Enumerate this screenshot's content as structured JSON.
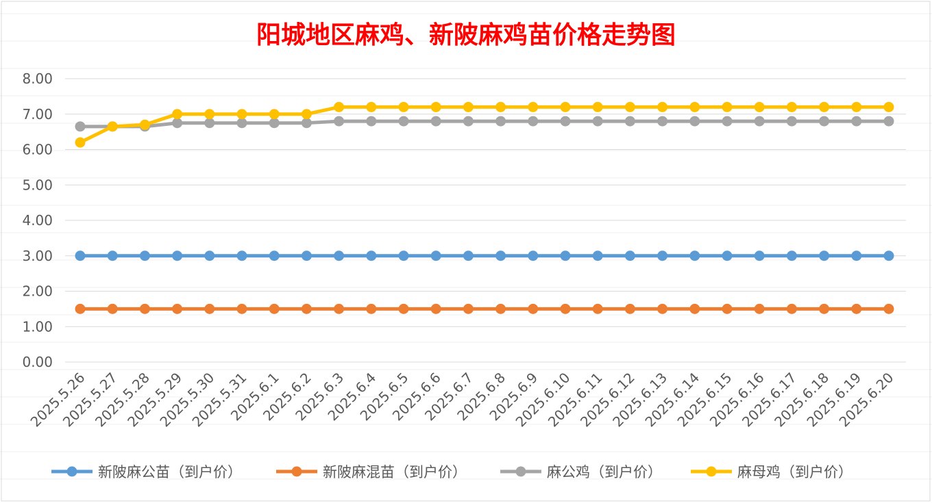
{
  "chart_data": {
    "type": "line",
    "title": "阳城地区麻鸡、新陂麻鸡苗价格走势图",
    "xlabel": "",
    "ylabel": "",
    "ylim": [
      0,
      8
    ],
    "yticks": [
      "0.00",
      "1.00",
      "2.00",
      "3.00",
      "4.00",
      "5.00",
      "6.00",
      "7.00",
      "8.00"
    ],
    "grid": true,
    "legend_position": "bottom",
    "categories": [
      "2025.5.26",
      "2025.5.27",
      "2025.5.28",
      "2025.5.29",
      "2025.5.30",
      "2025.5.31",
      "2025.6.1",
      "2025.6.2",
      "2025.6.3",
      "2025.6.4",
      "2025.6.5",
      "2025.6.6",
      "2025.6.7",
      "2025.6.8",
      "2025.6.9",
      "2025.6.10",
      "2025.6.11",
      "2025.6.12",
      "2025.6.13",
      "2025.6.14",
      "2025.6.15",
      "2025.6.16",
      "2025.6.17",
      "2025.6.18",
      "2025.6.19",
      "2025.6.20"
    ],
    "series": [
      {
        "name": "新陂麻公苗（到户价）",
        "color": "#5b9bd5",
        "values": [
          3,
          3,
          3,
          3,
          3,
          3,
          3,
          3,
          3,
          3,
          3,
          3,
          3,
          3,
          3,
          3,
          3,
          3,
          3,
          3,
          3,
          3,
          3,
          3,
          3,
          3
        ]
      },
      {
        "name": "新陂麻混苗（到户价）",
        "color": "#ed7d31",
        "values": [
          1.5,
          1.5,
          1.5,
          1.5,
          1.5,
          1.5,
          1.5,
          1.5,
          1.5,
          1.5,
          1.5,
          1.5,
          1.5,
          1.5,
          1.5,
          1.5,
          1.5,
          1.5,
          1.5,
          1.5,
          1.5,
          1.5,
          1.5,
          1.5,
          1.5,
          1.5
        ]
      },
      {
        "name": "麻公鸡（到户价）",
        "color": "#a5a5a5",
        "values": [
          6.65,
          6.65,
          6.65,
          6.75,
          6.75,
          6.75,
          6.75,
          6.75,
          6.8,
          6.8,
          6.8,
          6.8,
          6.8,
          6.8,
          6.8,
          6.8,
          6.8,
          6.8,
          6.8,
          6.8,
          6.8,
          6.8,
          6.8,
          6.8,
          6.8,
          6.8
        ]
      },
      {
        "name": "麻母鸡（到户价）",
        "color": "#ffc000",
        "values": [
          6.2,
          6.65,
          6.7,
          7.0,
          7.0,
          7.0,
          7.0,
          7.0,
          7.2,
          7.2,
          7.2,
          7.2,
          7.2,
          7.2,
          7.2,
          7.2,
          7.2,
          7.2,
          7.2,
          7.2,
          7.2,
          7.2,
          7.2,
          7.2,
          7.2,
          7.2
        ]
      }
    ]
  }
}
